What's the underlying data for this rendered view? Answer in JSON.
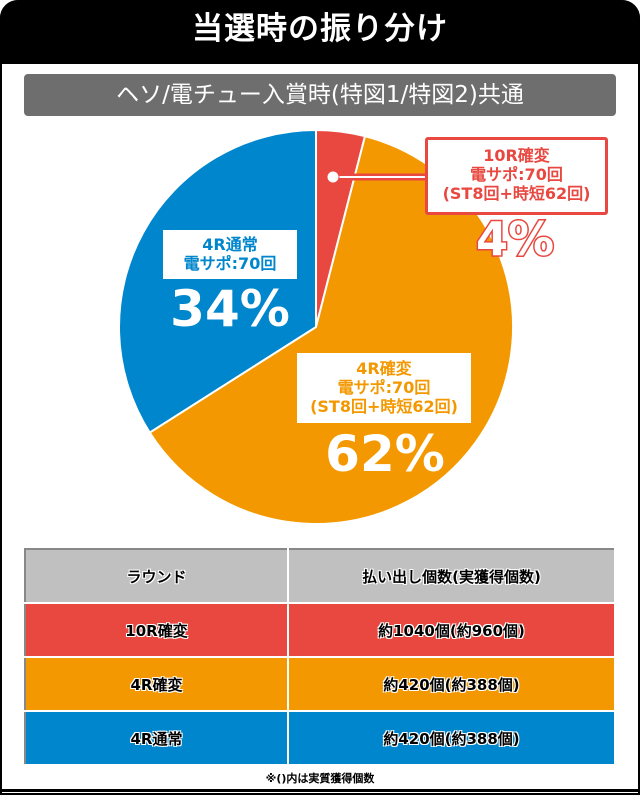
{
  "title": "当選時の振り分け",
  "subtitle": "ヘソ/電チュー入賞時(特図1/特図2)共通",
  "chart_data": {
    "type": "pie",
    "start": "top",
    "direction": "clockwise",
    "slices": [
      {
        "label": "10R確変",
        "line1": "10R確変",
        "line2": "電サポ:70回",
        "line3": "(ST8回+時短62回)",
        "value": 4,
        "pct_label": "4%",
        "color": "#e84840"
      },
      {
        "label": "4R確変",
        "line1": "4R確変",
        "line2": "電サポ:70回",
        "line3": "(ST8回+時短62回)",
        "value": 62,
        "pct_label": "62%",
        "color": "#f39800"
      },
      {
        "label": "4R通常",
        "line1": "4R通常",
        "line2": "電サポ:70回",
        "value": 34,
        "pct_label": "34%",
        "color": "#0086cc"
      }
    ]
  },
  "table": {
    "headers": [
      "ラウンド",
      "払い出し個数(実獲得個数)"
    ],
    "rows": [
      {
        "round": "10R確変",
        "payout": "約1040個(約960個)",
        "color": "#e84840"
      },
      {
        "round": "4R確変",
        "payout": "約420個(約388個)",
        "color": "#f39800"
      },
      {
        "round": "4R通常",
        "payout": "約420個(約388個)",
        "color": "#0086cc"
      }
    ]
  },
  "note": "※()内は実質獲得個数"
}
